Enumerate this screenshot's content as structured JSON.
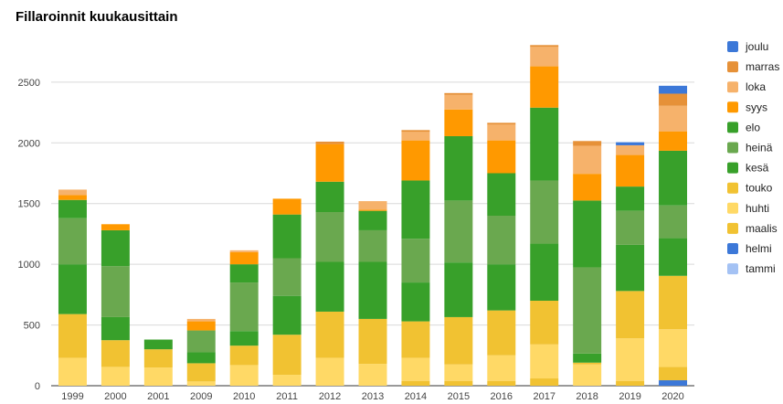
{
  "chart_data": {
    "type": "bar",
    "stacked": true,
    "title": "Fillaroinnit kuukausittain",
    "categories": [
      "1999",
      "2000",
      "2001",
      "2009",
      "2010",
      "2011",
      "2012",
      "2013",
      "2014",
      "2015",
      "2016",
      "2017",
      "2018",
      "2019",
      "2020"
    ],
    "ylim": [
      0,
      2800
    ],
    "yticks": [
      0,
      500,
      1000,
      1500,
      2000,
      2500
    ],
    "grid": true,
    "legend_position": "right",
    "series": [
      {
        "name": "tammi",
        "color": "#a4c2f4",
        "values": [
          0,
          0,
          0,
          0,
          0,
          0,
          0,
          0,
          0,
          0,
          0,
          0,
          0,
          0,
          0
        ]
      },
      {
        "name": "helmi",
        "color": "#3c78d8",
        "values": [
          0,
          0,
          0,
          0,
          0,
          0,
          0,
          0,
          0,
          0,
          0,
          0,
          0,
          0,
          45
        ]
      },
      {
        "name": "maalis",
        "color": "#f1c232",
        "values": [
          0,
          0,
          0,
          0,
          0,
          0,
          0,
          0,
          40,
          40,
          40,
          60,
          0,
          40,
          110
        ]
      },
      {
        "name": "huhti",
        "color": "#ffd966",
        "values": [
          230,
          155,
          150,
          35,
          170,
          90,
          230,
          180,
          190,
          135,
          210,
          280,
          175,
          350,
          310
        ]
      },
      {
        "name": "touko",
        "color": "#f1c232",
        "values": [
          360,
          220,
          150,
          150,
          160,
          330,
          380,
          370,
          300,
          390,
          370,
          360,
          15,
          390,
          440
        ]
      },
      {
        "name": "kesä",
        "color": "#38a02a",
        "values": [
          410,
          190,
          80,
          90,
          120,
          320,
          410,
          470,
          320,
          450,
          380,
          470,
          75,
          380,
          310
        ]
      },
      {
        "name": "heinä",
        "color": "#6aa84f",
        "values": [
          380,
          420,
          0,
          180,
          400,
          310,
          410,
          260,
          360,
          510,
          400,
          520,
          710,
          280,
          270
        ]
      },
      {
        "name": "elo",
        "color": "#38a02a",
        "values": [
          150,
          295,
          0,
          0,
          150,
          360,
          250,
          160,
          480,
          530,
          350,
          600,
          550,
          200,
          450
        ]
      },
      {
        "name": "syys",
        "color": "#ff9900",
        "values": [
          40,
          50,
          0,
          75,
          100,
          130,
          310,
          10,
          330,
          220,
          270,
          340,
          220,
          260,
          160
        ]
      },
      {
        "name": "loka",
        "color": "#f6b26b",
        "values": [
          45,
          0,
          0,
          20,
          15,
          0,
          0,
          70,
          70,
          120,
          130,
          160,
          230,
          80,
          210
        ]
      },
      {
        "name": "marras",
        "color": "#e69138",
        "values": [
          0,
          0,
          0,
          0,
          0,
          0,
          20,
          0,
          15,
          15,
          15,
          15,
          40,
          0,
          100
        ]
      },
      {
        "name": "joulu",
        "color": "#3c78d8",
        "values": [
          0,
          0,
          0,
          0,
          0,
          0,
          0,
          0,
          0,
          0,
          0,
          0,
          0,
          25,
          65
        ]
      }
    ],
    "legend_order": [
      "joulu",
      "marras",
      "loka",
      "syys",
      "elo",
      "heinä",
      "kesä",
      "touko",
      "huhti",
      "maalis",
      "helmi",
      "tammi"
    ]
  }
}
